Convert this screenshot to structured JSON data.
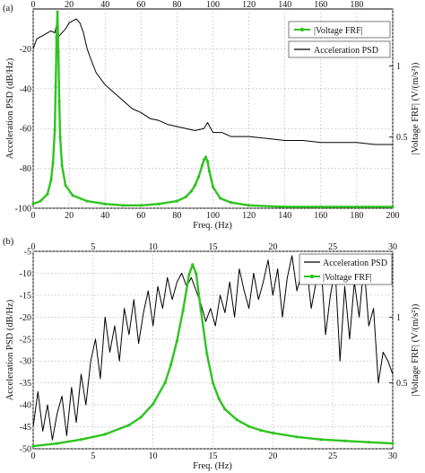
{
  "chart_data": [
    {
      "panel_label": "(a)",
      "type": "line",
      "xlabel": "Freq. (Hz)",
      "ylabel_left": "Acceleration PSD (dB/Hz)",
      "ylabel_right": "|Voltage FRF| (V/(m/s²))",
      "xlim": [
        0,
        200
      ],
      "ylim_left": [
        -100,
        0
      ],
      "ylim_right": [
        0,
        1.4
      ],
      "x_ticks": [
        "0",
        "20",
        "40",
        "60",
        "80",
        "100",
        "120",
        "140",
        "160",
        "180",
        "200"
      ],
      "x_ticks_top": [
        "0",
        "20",
        "40",
        "60",
        "80",
        "100",
        "120",
        "140",
        "160",
        "180"
      ],
      "y_ticks_left": [
        "-20",
        "-40",
        "-60",
        "-80",
        "-100"
      ],
      "y_ticks_right": [
        "0.5",
        "1"
      ],
      "legend": [
        "|Voltage FRF|",
        "Acceleration PSD"
      ],
      "series": [
        {
          "name": "Acceleration PSD",
          "axis": "left",
          "color": "#000000",
          "x": [
            0,
            2,
            4,
            6,
            8,
            10,
            12,
            13,
            14,
            16,
            18,
            20,
            22,
            24,
            26,
            28,
            30,
            32,
            35,
            40,
            45,
            50,
            55,
            60,
            65,
            70,
            75,
            80,
            85,
            90,
            95,
            97,
            100,
            105,
            110,
            120,
            130,
            140,
            150,
            160,
            170,
            180,
            190,
            200
          ],
          "values": [
            -20,
            -15,
            -14,
            -13,
            -12,
            -11,
            -12,
            -8,
            -14,
            -12,
            -10,
            -7,
            -6,
            -5,
            -7,
            -12,
            -20,
            -25,
            -32,
            -38,
            -42,
            -46,
            -50,
            -52,
            -55,
            -56,
            -58,
            -59,
            -60,
            -61,
            -60,
            -57,
            -62,
            -62,
            -64,
            -64,
            -65,
            -66,
            -66,
            -67,
            -67,
            -67,
            -68,
            -68
          ]
        },
        {
          "name": "|Voltage FRF|",
          "axis": "right",
          "color": "#2ec41f",
          "x": [
            0,
            4,
            8,
            10,
            11,
            12,
            12.5,
            13,
            13.5,
            14,
            14.5,
            15,
            16,
            18,
            22,
            30,
            40,
            50,
            60,
            70,
            80,
            85,
            88,
            90,
            92,
            94,
            95,
            96,
            97,
            98,
            100,
            104,
            110,
            120,
            140,
            160,
            180,
            200
          ],
          "values": [
            0.03,
            0.05,
            0.1,
            0.2,
            0.32,
            0.55,
            0.85,
            1.2,
            1.38,
            1.1,
            0.75,
            0.5,
            0.3,
            0.16,
            0.09,
            0.05,
            0.03,
            0.02,
            0.02,
            0.03,
            0.05,
            0.08,
            0.12,
            0.16,
            0.22,
            0.3,
            0.34,
            0.36,
            0.33,
            0.26,
            0.15,
            0.07,
            0.04,
            0.02,
            0.01,
            0.01,
            0.01,
            0.01
          ]
        }
      ]
    },
    {
      "panel_label": "(b)",
      "type": "line",
      "xlabel": "Freq. (Hz)",
      "ylabel_left": "Acceleration PSD (dB/Hz)",
      "ylabel_right": "|Voltage FRF| (V/(m/s²))",
      "xlim": [
        0,
        30
      ],
      "ylim_left": [
        -50,
        -5
      ],
      "ylim_right": [
        0,
        1.5
      ],
      "x_ticks": [
        "0",
        "5",
        "10",
        "15",
        "20",
        "25",
        "30"
      ],
      "x_ticks_top": [
        "0",
        "5",
        "10",
        "15",
        "20",
        "25",
        "30"
      ],
      "y_ticks_left": [
        "-5",
        "-10",
        "-15",
        "-20",
        "-25",
        "-30",
        "-35",
        "-40",
        "-45",
        "-50"
      ],
      "y_ticks_right": [
        "0.5",
        "1"
      ],
      "legend": [
        "Acceleration PSD",
        "|Voltage FRF|"
      ],
      "series": [
        {
          "name": "Acceleration PSD",
          "axis": "left",
          "color": "#000000",
          "x": [
            0,
            0.4,
            0.8,
            1.2,
            1.6,
            2.0,
            2.4,
            2.8,
            3.2,
            3.6,
            4.0,
            4.4,
            4.8,
            5.2,
            5.6,
            6.0,
            6.4,
            6.8,
            7.2,
            7.6,
            8.0,
            8.4,
            8.8,
            9.2,
            9.6,
            10.0,
            10.4,
            10.8,
            11.2,
            11.6,
            12.0,
            12.4,
            12.8,
            13.2,
            13.6,
            14.0,
            14.4,
            14.8,
            15.2,
            15.6,
            16.0,
            16.4,
            16.8,
            17.2,
            17.6,
            18.0,
            18.4,
            18.8,
            19.2,
            19.6,
            20.0,
            20.4,
            20.8,
            21.2,
            21.6,
            22.0,
            22.4,
            22.8,
            23.2,
            23.6,
            24.0,
            24.4,
            24.8,
            25.2,
            25.6,
            26.0,
            26.4,
            26.8,
            27.2,
            27.6,
            28.0,
            28.4,
            28.8,
            29.2,
            29.6,
            30.0
          ],
          "values": [
            -45,
            -37,
            -46,
            -40,
            -48,
            -42,
            -38,
            -47,
            -36,
            -44,
            -33,
            -40,
            -30,
            -25,
            -34,
            -20,
            -28,
            -22,
            -30,
            -18,
            -24,
            -16,
            -26,
            -19,
            -14,
            -22,
            -13,
            -18,
            -11,
            -16,
            -12,
            -10,
            -13,
            -11,
            -14,
            -17,
            -21,
            -18,
            -22,
            -15,
            -19,
            -12,
            -20,
            -9,
            -14,
            -18,
            -10,
            -16,
            -12,
            -7,
            -15,
            -9,
            -20,
            -11,
            -6,
            -14,
            -10,
            -8,
            -18,
            -12,
            -7,
            -24,
            -15,
            -9,
            -30,
            -13,
            -25,
            -12,
            -20,
            -8,
            -22,
            -18,
            -35,
            -28,
            -30,
            -33
          ]
        },
        {
          "name": "|Voltage FRF|",
          "axis": "right",
          "color": "#2ec41f",
          "x": [
            0,
            2,
            4,
            6,
            8,
            9,
            10,
            11,
            11.5,
            12,
            12.5,
            13,
            13.3,
            13.6,
            14,
            14.5,
            15,
            15.5,
            16,
            17,
            18,
            19,
            20,
            22,
            24,
            26,
            28,
            30
          ],
          "values": [
            0.02,
            0.04,
            0.07,
            0.11,
            0.18,
            0.24,
            0.34,
            0.5,
            0.64,
            0.82,
            1.05,
            1.32,
            1.4,
            1.33,
            1.05,
            0.72,
            0.5,
            0.38,
            0.3,
            0.22,
            0.17,
            0.14,
            0.12,
            0.09,
            0.07,
            0.06,
            0.05,
            0.04
          ]
        }
      ]
    }
  ]
}
